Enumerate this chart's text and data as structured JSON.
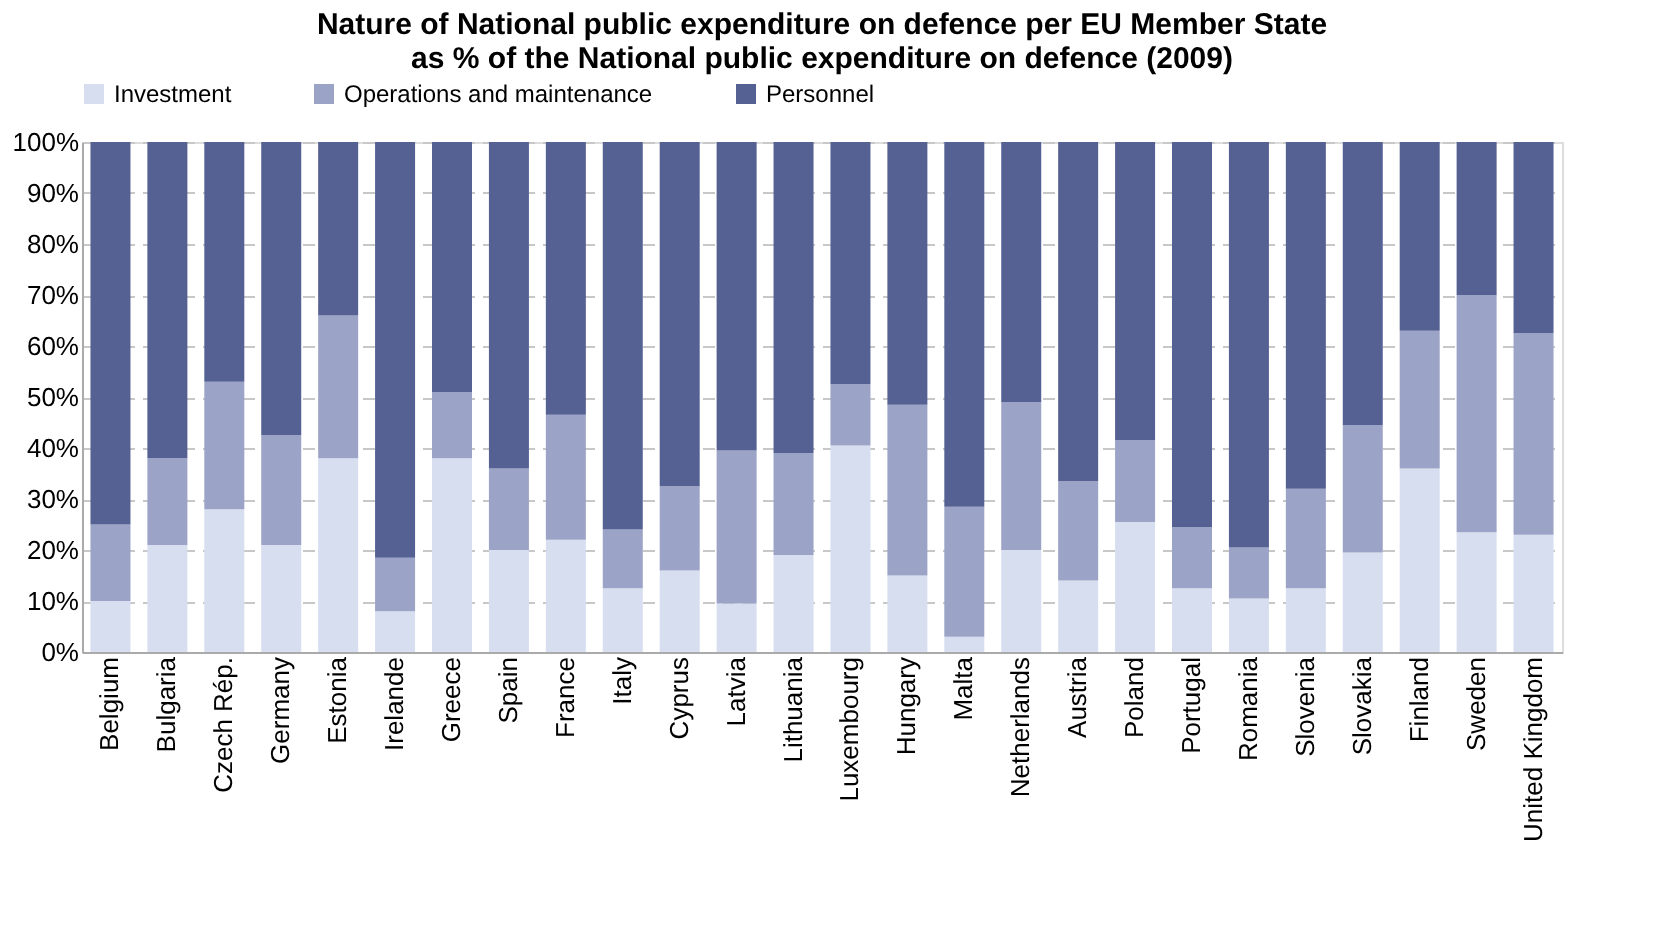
{
  "chart_data": {
    "type": "bar",
    "stacked": true,
    "title": "Nature of National public expenditure on defence per EU Member State\nas % of the National public expenditure on defence (2009)",
    "categories": [
      "Belgium",
      "Bulgaria",
      "Czech Rép.",
      "Germany",
      "Estonia",
      "Irelande",
      "Greece",
      "Spain",
      "France",
      "Italy",
      "Cyprus",
      "Latvia",
      "Lithuania",
      "Luxembourg",
      "Hungary",
      "Malta",
      "Netherlands",
      "Austria",
      "Poland",
      "Portugal",
      "Romania",
      "Slovenia",
      "Slovakia",
      "Finland",
      "Sweden",
      "United Kingdom"
    ],
    "series": [
      {
        "name": "Investment",
        "color": "#d6def0",
        "values": [
          10,
          21,
          28,
          21,
          38,
          8,
          38,
          20,
          22,
          12.5,
          16,
          9.5,
          19,
          40.5,
          15,
          3,
          20,
          14,
          25.5,
          12.5,
          10.5,
          12.5,
          19.5,
          36,
          23.5,
          23
        ]
      },
      {
        "name": "Operations and maintenance",
        "color": "#9ba3c6",
        "values": [
          15,
          17,
          25,
          21.5,
          28,
          10.5,
          13,
          16,
          24.5,
          11.5,
          16.5,
          30,
          20,
          12,
          33.5,
          25.5,
          29,
          19.5,
          16,
          12,
          10,
          19.5,
          25,
          27,
          46.5,
          39.5
        ]
      },
      {
        "name": "Personnel",
        "color": "#556193",
        "values": [
          75,
          62,
          47,
          57.5,
          34,
          81.5,
          49,
          64,
          53.5,
          76,
          67.5,
          60.5,
          61,
          47.5,
          51.5,
          71.5,
          51,
          66.5,
          58.5,
          75.5,
          79.5,
          68,
          55.5,
          37,
          30,
          37.5
        ]
      }
    ],
    "ylim": [
      0,
      100
    ],
    "yticks": [
      {
        "value": 0,
        "label": "0%"
      },
      {
        "value": 10,
        "label": "10%"
      },
      {
        "value": 20,
        "label": "20%"
      },
      {
        "value": 30,
        "label": "30%"
      },
      {
        "value": 40,
        "label": "40%"
      },
      {
        "value": 50,
        "label": "50%"
      },
      {
        "value": 60,
        "label": "60%"
      },
      {
        "value": 70,
        "label": "70%"
      },
      {
        "value": 80,
        "label": "80%"
      },
      {
        "value": 90,
        "label": "90%"
      },
      {
        "value": 100,
        "label": "100%"
      }
    ],
    "grid": "y",
    "legend": "top"
  }
}
